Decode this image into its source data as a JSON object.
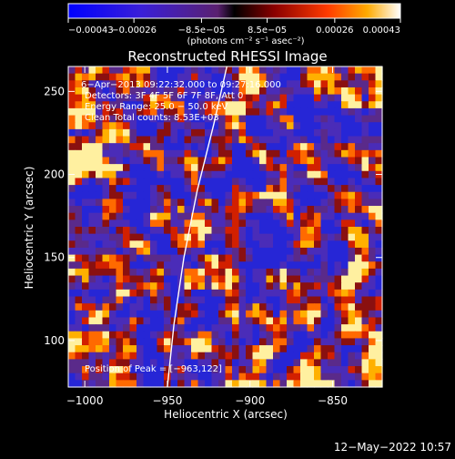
{
  "chart_data": {
    "type": "heatmap",
    "title": "Reconstructed RHESSI Image",
    "xlabel": "Heliocentric X (arcsec)",
    "ylabel": "Heliocentric Y (arcsec)",
    "xlim": [
      -1010,
      -820
    ],
    "ylim": [
      72,
      265
    ],
    "x_ticks": [
      -1000,
      -950,
      -900,
      -850
    ],
    "x_tick_labels": [
      "−1000",
      "−950",
      "−900",
      "−850"
    ],
    "y_ticks": [
      100,
      150,
      200,
      250
    ],
    "y_tick_labels": [
      "100",
      "150",
      "200",
      "250"
    ],
    "colorbar": {
      "range": [
        -0.00043,
        0.00043
      ],
      "tick_values": [
        -0.00043,
        -0.00026,
        -8.5e-05,
        8.5e-05,
        0.00026,
        0.00043
      ],
      "tick_labels": [
        "−0.00043",
        "−0.00026",
        "−8.5e−05",
        "8.5e−05",
        "0.00026",
        "0.00043"
      ],
      "unit_label": "(photons cm⁻² s⁻¹ asec⁻²)"
    },
    "annotations": {
      "time": "6−Apr−2013 09:22:32.000 to 09:27:16.000",
      "detectors": "Detectors: 3F 4F 5F 6F 7F 8F, Att 0",
      "energy": "Energy Range: 25.0 − 50.0 keV",
      "clean": "Clean    Total counts: 8.53E+03",
      "peak": "Position of Peak = [−963,122]"
    },
    "limb_curve": [
      [
        -950,
        72
      ],
      [
        -946,
        110
      ],
      [
        -940,
        150
      ],
      [
        -932,
        190
      ],
      [
        -922,
        230
      ],
      [
        -914,
        265
      ]
    ],
    "grid": false
  },
  "footer": {
    "date": "12−May−2022 10:57"
  }
}
